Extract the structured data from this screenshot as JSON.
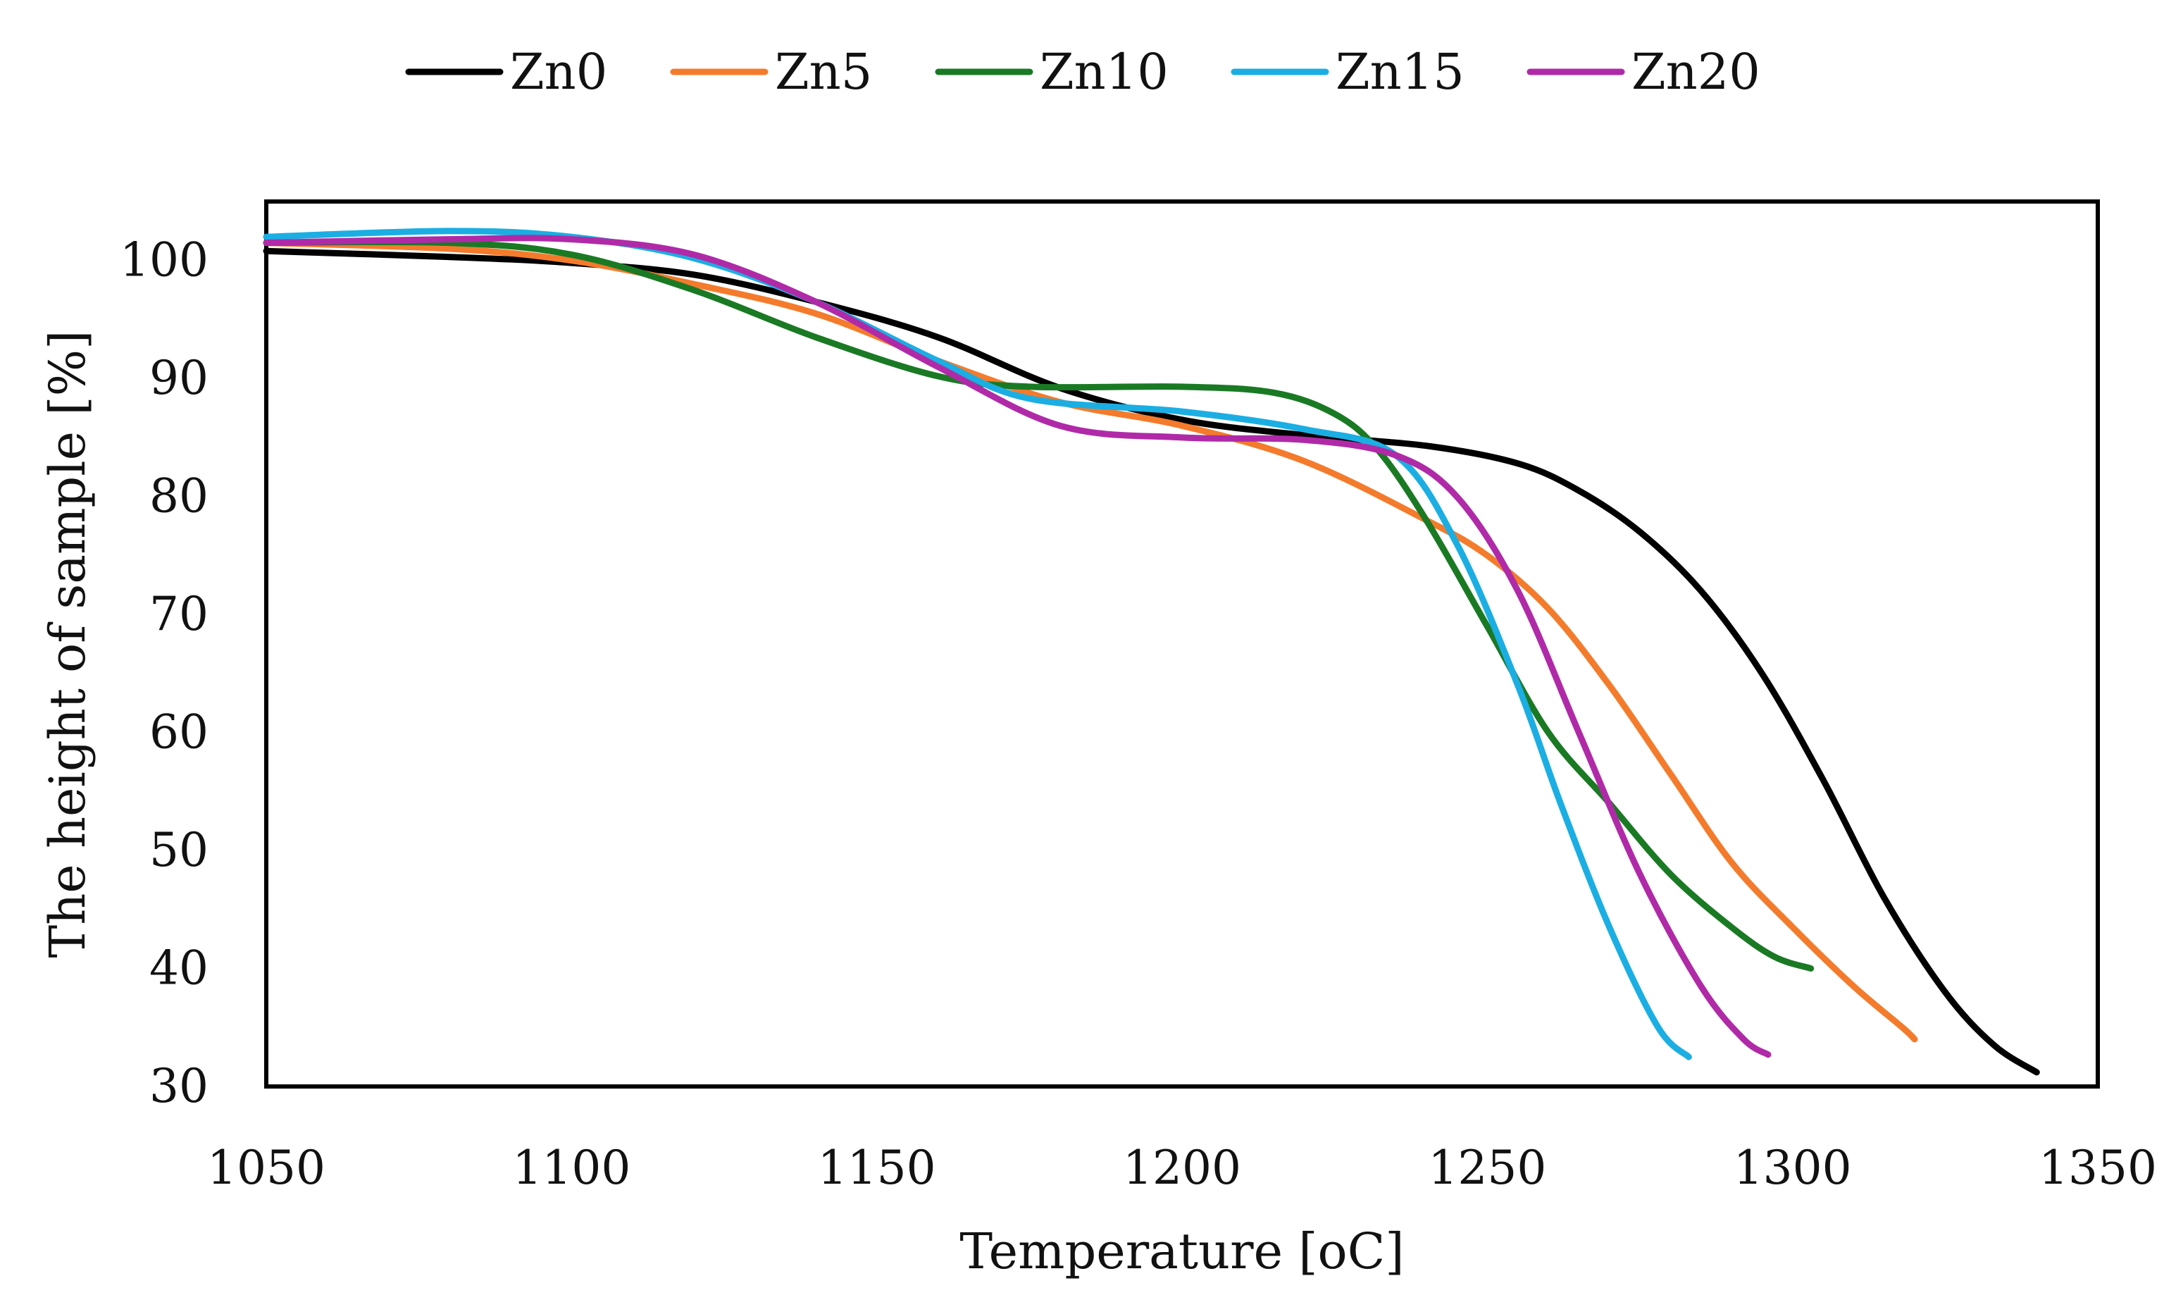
{
  "chart_data": {
    "type": "line",
    "title": "",
    "xlabel": "Temperature [oC]",
    "ylabel": "The height of sample [%]",
    "xlim": [
      1050,
      1350
    ],
    "ylim": [
      30,
      105
    ],
    "xticks": [
      1050,
      1100,
      1150,
      1200,
      1250,
      1300,
      1350
    ],
    "yticks": [
      30,
      40,
      50,
      60,
      70,
      80,
      90,
      100
    ],
    "grid": false,
    "legend_position": "top",
    "series": [
      {
        "name": "Zn0",
        "color": "#000000",
        "x": [
          1050,
          1080,
          1100,
          1120,
          1140,
          1160,
          1180,
          1200,
          1220,
          1240,
          1255,
          1265,
          1275,
          1285,
          1295,
          1305,
          1315,
          1325,
          1333,
          1340
        ],
        "y": [
          100.8,
          100.3,
          99.8,
          98.8,
          96.5,
          93.5,
          89.2,
          86.5,
          85.2,
          84.3,
          82.8,
          80.5,
          77,
          72,
          65,
          56,
          46,
          38,
          33.5,
          31.2
        ]
      },
      {
        "name": "Zn5",
        "color": "#F47B2C",
        "x": [
          1050,
          1080,
          1100,
          1120,
          1140,
          1160,
          1180,
          1200,
          1220,
          1240,
          1250,
          1260,
          1270,
          1280,
          1290,
          1300,
          1310,
          1318,
          1320
        ],
        "y": [
          101.5,
          101,
          100,
          98,
          95.5,
          91.5,
          88,
          86,
          83,
          78,
          75,
          70.5,
          64,
          56.5,
          49,
          43.5,
          38.5,
          35,
          34
        ]
      },
      {
        "name": "Zn10",
        "color": "#1A7A24",
        "x": [
          1050,
          1080,
          1100,
          1120,
          1140,
          1160,
          1175,
          1200,
          1215,
          1225,
          1232,
          1240,
          1250,
          1260,
          1270,
          1280,
          1290,
          1297,
          1303
        ],
        "y": [
          101.5,
          101.5,
          100.5,
          97.5,
          93.5,
          90.2,
          89.3,
          89.3,
          88.8,
          87,
          84,
          78,
          69,
          60,
          54,
          48,
          43.5,
          41,
          40
        ]
      },
      {
        "name": "Zn15",
        "color": "#1BAEE3",
        "x": [
          1050,
          1080,
          1100,
          1120,
          1140,
          1160,
          1175,
          1200,
          1220,
          1235,
          1245,
          1255,
          1262,
          1270,
          1278,
          1283
        ],
        "y": [
          102,
          102.5,
          102,
          100.2,
          96.5,
          91.5,
          88.3,
          87.2,
          85.7,
          83.5,
          76,
          64,
          54,
          43.5,
          35,
          32.5
        ]
      },
      {
        "name": "Zn20",
        "color": "#B02AA8",
        "x": [
          1050,
          1080,
          1100,
          1120,
          1140,
          1160,
          1180,
          1200,
          1220,
          1235,
          1245,
          1255,
          1265,
          1275,
          1285,
          1292,
          1296
        ],
        "y": [
          101.5,
          101.8,
          101.8,
          100.5,
          96.5,
          91,
          86,
          85,
          84.8,
          83.5,
          80,
          72,
          60,
          48,
          38.5,
          34,
          32.7
        ]
      }
    ]
  }
}
